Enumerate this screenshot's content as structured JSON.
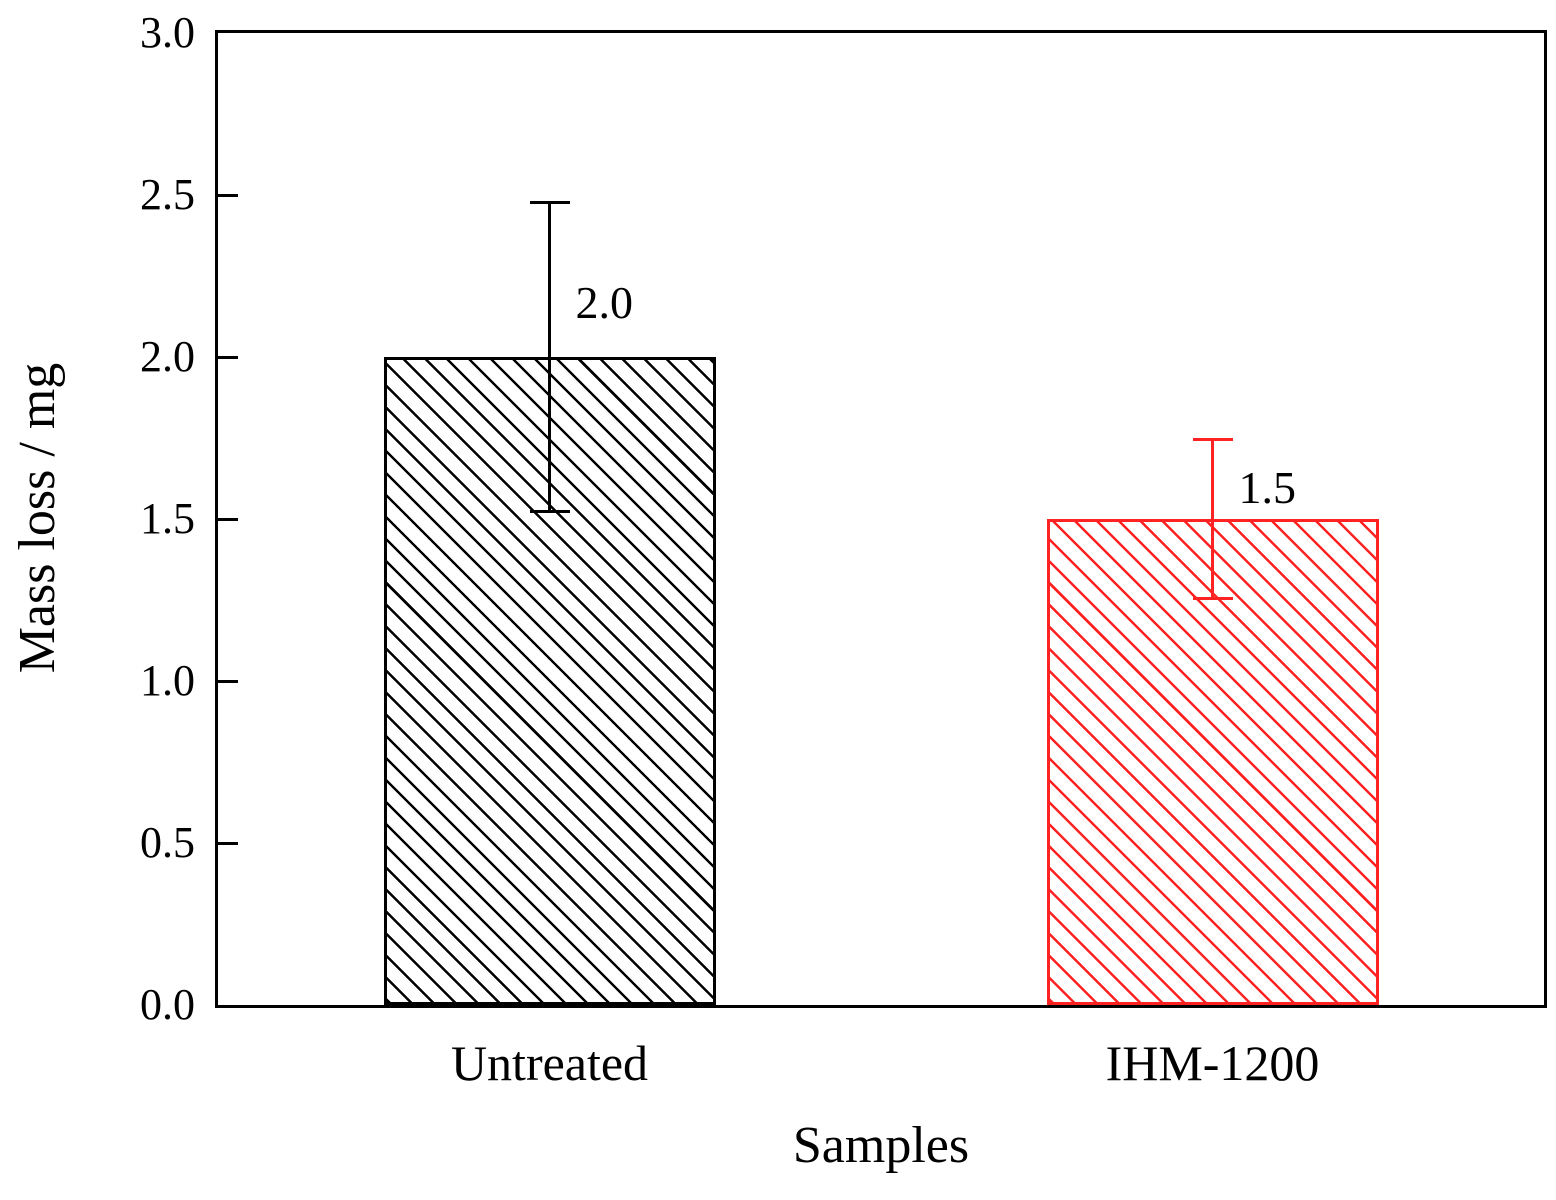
{
  "chart_data": {
    "type": "bar",
    "title": "",
    "xlabel": "Samples",
    "ylabel": "Mass loss / mg",
    "categories": [
      "Untreated",
      "IHM-1200"
    ],
    "values": [
      2.0,
      1.5
    ],
    "errors": [
      0.48,
      0.25
    ],
    "bar_labels": [
      "2.0",
      "1.5"
    ],
    "bar_colors": [
      "#000000",
      "#ff2222"
    ],
    "hatch": "diagonal-backslash",
    "ylim": [
      0.0,
      3.0
    ],
    "ytick_values": [
      0.0,
      0.5,
      1.0,
      1.5,
      2.0,
      2.5,
      3.0
    ],
    "ytick_labels": [
      "0.0",
      "0.5",
      "1.0",
      "1.5",
      "2.0",
      "2.5",
      "3.0"
    ],
    "grid": false,
    "legend_position": "none",
    "frame": "full-box"
  }
}
